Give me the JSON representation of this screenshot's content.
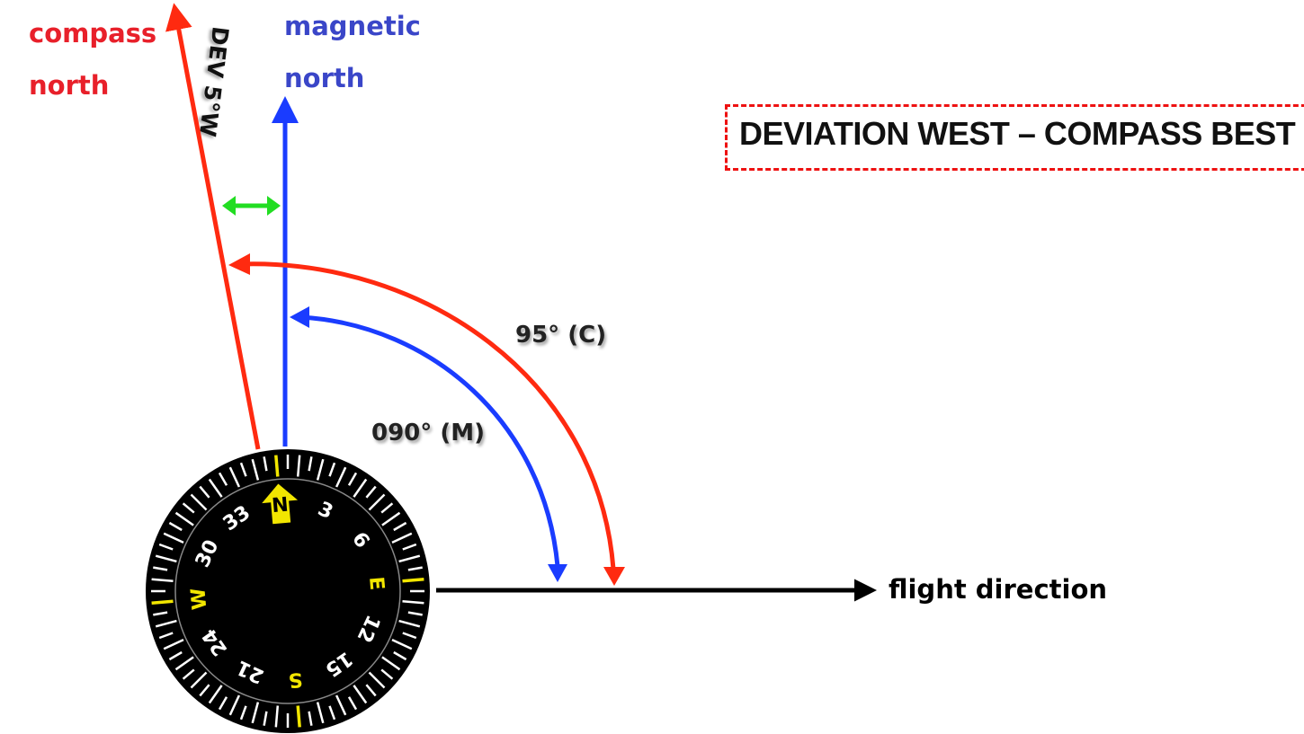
{
  "labels": {
    "compass_north_line1": "compass",
    "compass_north_line2": "north",
    "magnetic_north_line1": "magnetic",
    "magnetic_north_line2": "north",
    "deviation": "DEV 5°W",
    "title": "DEVIATION WEST – COMPASS BEST",
    "compass_heading": "95° (C)",
    "magnetic_heading": "090° (M)",
    "flight_direction": "flight direction"
  },
  "compass_card": {
    "cardinal": [
      "N",
      "E",
      "S",
      "W"
    ],
    "numbers": [
      "3",
      "6",
      "12",
      "15",
      "21",
      "24",
      "30",
      "33"
    ]
  },
  "colors": {
    "compass_north": "#ff2a10",
    "magnetic_north": "#1a3cff",
    "deviation_arrow": "#22dd22",
    "flight_direction": "#000000",
    "card_accent": "#f2e600"
  }
}
